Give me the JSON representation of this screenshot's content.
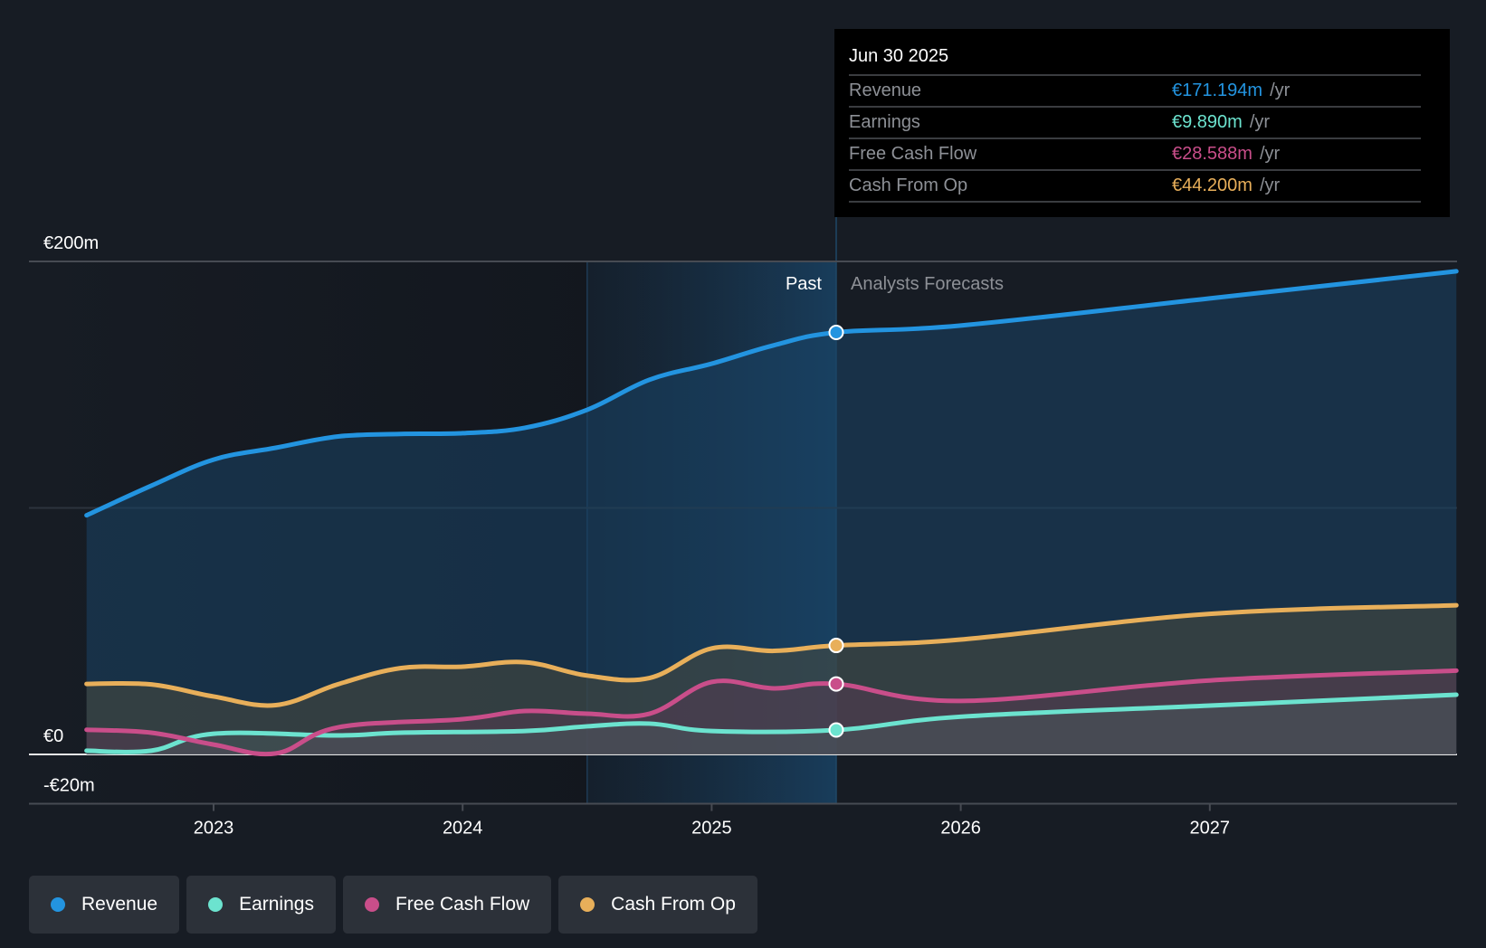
{
  "chart_data": {
    "type": "area",
    "title": "",
    "xlabel": "",
    "ylabel": "",
    "currency": "€",
    "ylim": [
      -20,
      200
    ],
    "y_ticks": [
      {
        "value": 200,
        "label": "€200m"
      },
      {
        "value": 100,
        "label": ""
      },
      {
        "value": 0,
        "label": "€0"
      },
      {
        "value": -20,
        "label": "-€20m"
      }
    ],
    "xlim": [
      2022.49,
      2027.99
    ],
    "x_ticks": [
      {
        "value": 2023,
        "label": "2023"
      },
      {
        "value": 2024,
        "label": "2024"
      },
      {
        "value": 2025,
        "label": "2025"
      },
      {
        "value": 2026,
        "label": "2026"
      },
      {
        "value": 2027,
        "label": "2027"
      }
    ],
    "grid": true,
    "legend_placement": "bottom-left",
    "highlight_range": [
      2024.5,
      2025.5
    ],
    "divider_x": 2025.5,
    "region_labels": {
      "past": "Past",
      "forecast": "Analysts Forecasts"
    },
    "series": [
      {
        "name": "Revenue",
        "color": "#2394e0",
        "unit": "€m",
        "points": [
          [
            2022.49,
            97
          ],
          [
            2022.75,
            109
          ],
          [
            2023.0,
            119.6
          ],
          [
            2023.25,
            124.4
          ],
          [
            2023.5,
            129
          ],
          [
            2023.75,
            130
          ],
          [
            2024.0,
            130.3
          ],
          [
            2024.25,
            132.5
          ],
          [
            2024.5,
            139.8
          ],
          [
            2024.75,
            152
          ],
          [
            2025.0,
            158.5
          ],
          [
            2025.25,
            166
          ],
          [
            2025.5,
            171.2
          ],
          [
            2026.0,
            174
          ],
          [
            2027.0,
            185
          ],
          [
            2027.99,
            196
          ]
        ]
      },
      {
        "name": "Earnings",
        "color": "#6ce3cf",
        "unit": "€m",
        "points": [
          [
            2022.49,
            1.5
          ],
          [
            2022.75,
            1.5
          ],
          [
            2023.0,
            8.4
          ],
          [
            2023.5,
            7.7
          ],
          [
            2023.75,
            8.8
          ],
          [
            2024.25,
            9.5
          ],
          [
            2024.5,
            11.4
          ],
          [
            2024.75,
            12.5
          ],
          [
            2025.0,
            9.5
          ],
          [
            2025.5,
            9.9
          ],
          [
            2026.0,
            15.3
          ],
          [
            2027.0,
            19.8
          ],
          [
            2027.99,
            24.2
          ]
        ]
      },
      {
        "name": "Free Cash Flow",
        "color": "#c94e8a",
        "unit": "€m",
        "points": [
          [
            2022.49,
            10
          ],
          [
            2022.75,
            8.8
          ],
          [
            2023.0,
            4
          ],
          [
            2023.25,
            0.4
          ],
          [
            2023.5,
            11
          ],
          [
            2024.0,
            14.3
          ],
          [
            2024.25,
            17.6
          ],
          [
            2024.5,
            16.5
          ],
          [
            2024.75,
            16.5
          ],
          [
            2025.0,
            29.4
          ],
          [
            2025.25,
            26.8
          ],
          [
            2025.5,
            28.6
          ],
          [
            2026.0,
            21.7
          ],
          [
            2027.0,
            30
          ],
          [
            2027.99,
            34
          ]
        ]
      },
      {
        "name": "Cash From Op",
        "color": "#e8af5a",
        "unit": "€m",
        "points": [
          [
            2022.49,
            28.6
          ],
          [
            2022.75,
            28.4
          ],
          [
            2023.0,
            23.5
          ],
          [
            2023.25,
            20
          ],
          [
            2023.5,
            28.5
          ],
          [
            2023.75,
            35
          ],
          [
            2024.0,
            35.6
          ],
          [
            2024.25,
            37.4
          ],
          [
            2024.5,
            32
          ],
          [
            2024.75,
            31
          ],
          [
            2025.0,
            43
          ],
          [
            2025.25,
            42
          ],
          [
            2025.5,
            44.2
          ],
          [
            2026.0,
            46.6
          ],
          [
            2027.0,
            57
          ],
          [
            2027.99,
            60.5
          ]
        ]
      }
    ]
  },
  "tooltip": {
    "date": "Jun 30 2025",
    "rows": [
      {
        "label": "Revenue",
        "value": "€171.194m",
        "unit": "/yr",
        "color": "#2394e0"
      },
      {
        "label": "Earnings",
        "value": "€9.890m",
        "unit": "/yr",
        "color": "#6ce3cf"
      },
      {
        "label": "Free Cash Flow",
        "value": "€28.588m",
        "unit": "/yr",
        "color": "#c94e8a"
      },
      {
        "label": "Cash From Op",
        "value": "€44.200m",
        "unit": "/yr",
        "color": "#e8af5a"
      }
    ]
  },
  "legend": [
    {
      "label": "Revenue",
      "color": "#2394e0"
    },
    {
      "label": "Earnings",
      "color": "#6ce3cf"
    },
    {
      "label": "Free Cash Flow",
      "color": "#c94e8a"
    },
    {
      "label": "Cash From Op",
      "color": "#e8af5a"
    }
  ]
}
